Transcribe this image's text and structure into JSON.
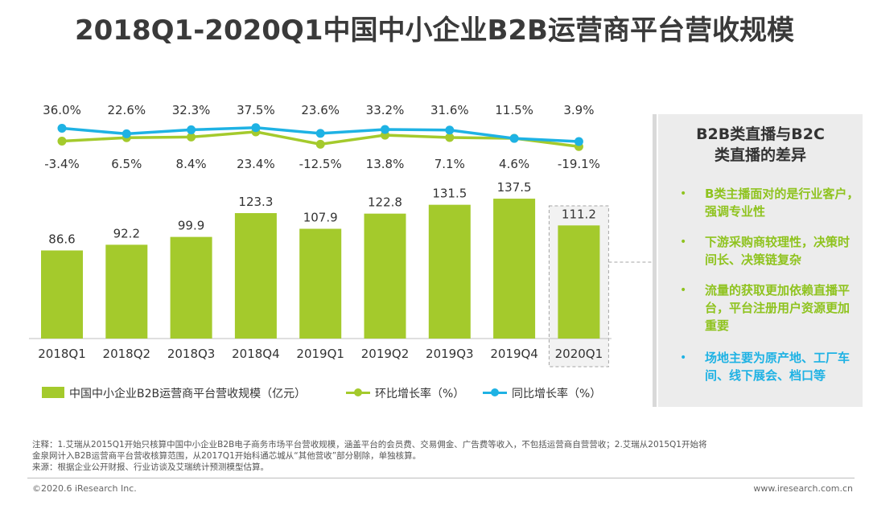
{
  "title": "2018Q1-2020Q1中国中小企业B2B运营商平台营收规模",
  "chart_data": {
    "type": "bar+line",
    "title": "2018Q1-2020Q1中国中小企业B2B运营商平台营收规模",
    "categories": [
      "2018Q1",
      "2018Q2",
      "2018Q3",
      "2018Q4",
      "2019Q1",
      "2019Q2",
      "2019Q3",
      "2019Q4",
      "2020Q1"
    ],
    "series": [
      {
        "name": "中国中小企业B2B运营商平台营收规模（亿元）",
        "type": "bar",
        "color": "#a4ca2c",
        "values": [
          86.6,
          92.2,
          99.9,
          123.3,
          107.9,
          122.8,
          131.5,
          137.5,
          111.2
        ],
        "labels": [
          "86.6",
          "92.2",
          "99.9",
          "123.3",
          "107.9",
          "122.8",
          "131.5",
          "137.5",
          "111.2"
        ]
      },
      {
        "name": "环比增长率（%）",
        "type": "line",
        "color": "#a4ca2c",
        "values": [
          -3.4,
          6.5,
          8.4,
          23.4,
          -12.5,
          13.8,
          7.1,
          4.6,
          -19.1
        ],
        "labels": [
          "-3.4%",
          "6.5%",
          "8.4%",
          "23.4%",
          "-12.5%",
          "13.8%",
          "7.1%",
          "4.6%",
          "-19.1%"
        ]
      },
      {
        "name": "同比增长率（%）",
        "type": "line",
        "color": "#1eb2e4",
        "values": [
          36.0,
          22.6,
          32.3,
          37.5,
          23.6,
          33.2,
          31.6,
          11.5,
          3.9
        ],
        "labels": [
          "36.0%",
          "22.6%",
          "32.3%",
          "37.5%",
          "23.6%",
          "33.2%",
          "31.6%",
          "11.5%",
          "3.9%"
        ]
      }
    ],
    "highlight_category": "2020Q1"
  },
  "side_panel": {
    "heading_line1": "B2B类直播与B2C",
    "heading_line2": "类直播的差异",
    "items": [
      {
        "bullet": "•",
        "text": "B类主播面对的是行业客户，强调专业性"
      },
      {
        "bullet": "•",
        "text": "下游采购商较理性，决策时间长、决策链复杂"
      },
      {
        "bullet": "•",
        "text": "流量的获取更加依赖直播平台，平台注册用户资源更加重要"
      },
      {
        "bullet": "•",
        "text": "场地主要为原产地、工厂车间、线下展会、档口等"
      }
    ]
  },
  "notes": {
    "line1": "注释：1.艾瑞从2015Q1开始只核算中国中小企业B2B电子商务市场平台营收规模，涵盖平台的会员费、交易佣金、广告费等收入，不包括运营商自营营收；2.艾瑞从2015Q1开始将",
    "line2": "金泉网计入B2B运营商平台营收核算范围，从2017Q1开始科通芯城从“其他营收”部分剔除，单独核算。",
    "line3": "来源：根据企业公开财报、行业访谈及艾瑞统计预测模型估算。"
  },
  "footer": {
    "copyright": "©2020.6 iResearch Inc.",
    "website": "www.iresearch.com.cn"
  },
  "colors": {
    "bar": "#a4ca2c",
    "mom": "#a4ca2c",
    "yoy": "#1eb2e4"
  }
}
